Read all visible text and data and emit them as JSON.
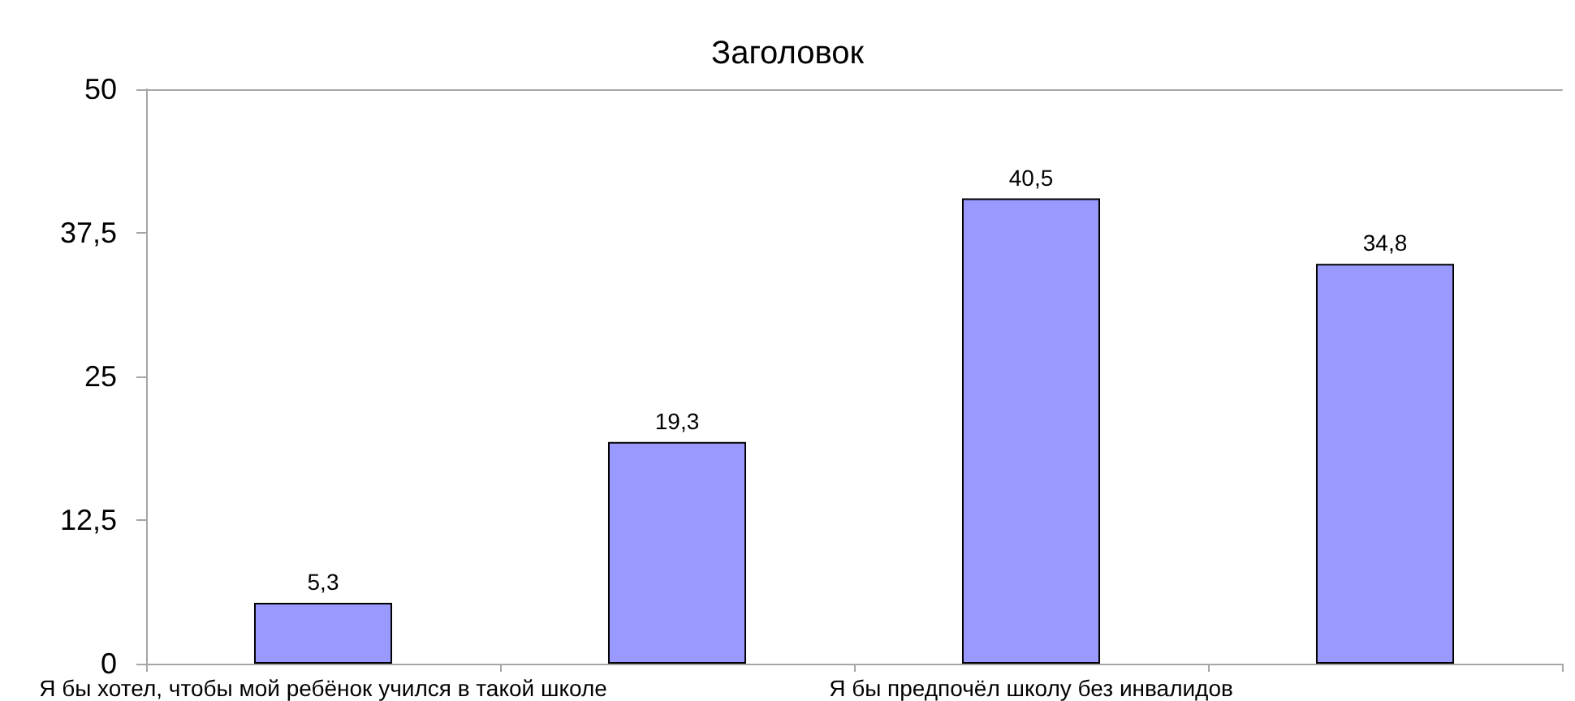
{
  "chart_data": {
    "type": "bar",
    "title": "Заголовок",
    "categories": [
      "Я бы хотел, чтобы мой ребёнок учился в такой школе",
      null,
      "Я бы предпочёл школу без инвалидов",
      null
    ],
    "values": [
      5.3,
      19.3,
      40.5,
      34.8
    ],
    "color": "#9999ff",
    "value_labels": [
      "5,3",
      "19,3",
      "40,5",
      "34,8"
    ],
    "ylim": [
      0,
      50
    ],
    "yticks": [
      0,
      {
        "value": 12.5,
        "label": "12,5"
      },
      25,
      {
        "value": 37.5,
        "label": "37,5"
      },
      50
    ],
    "grid": false
  }
}
